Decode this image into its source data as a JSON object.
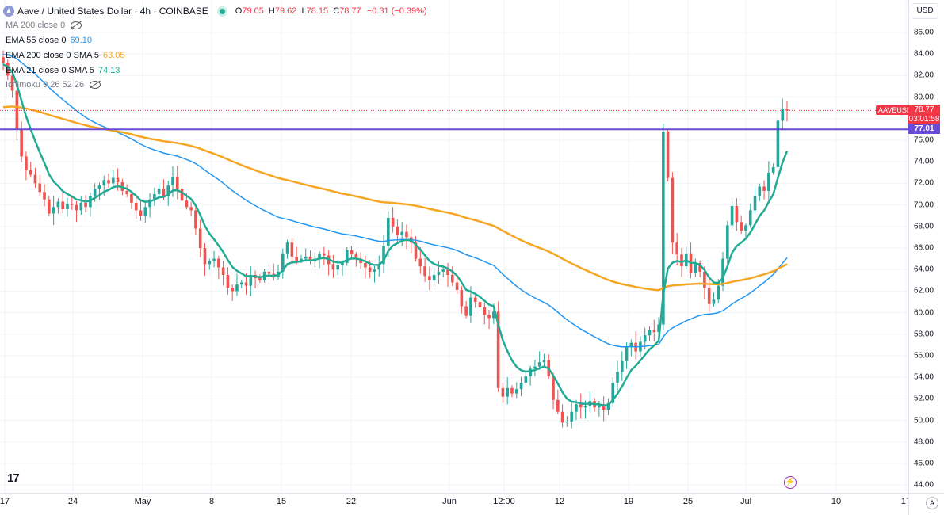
{
  "header": {
    "symbol_title": "Aave / United States Dollar · 4h · COINBASE",
    "open_label": "O",
    "open": "79.05",
    "high_label": "H",
    "high": "79.62",
    "low_label": "L",
    "low": "78.15",
    "close_label": "C",
    "close": "78.77",
    "change": "−0.31 (−0.39%)"
  },
  "indicators": [
    {
      "label": "MA 200 close 0",
      "value": "",
      "hidden": true,
      "color": "#2962ff"
    },
    {
      "label": "EMA 55 close 0",
      "value": "69.10",
      "hidden": false,
      "color": "#2196f3"
    },
    {
      "label": "EMA 200 close 0 SMA 5",
      "value": "63.05",
      "hidden": false,
      "color": "#f5a623"
    },
    {
      "label": "EMA 21 close 0 SMA 5",
      "value": "74.13",
      "hidden": false,
      "color": "#22ab94"
    },
    {
      "label": "Ichimoku 9 26 52 26",
      "value": "",
      "hidden": true,
      "color": "#888888"
    }
  ],
  "price_axis": {
    "currency": "USD",
    "ticks": [
      "86.00",
      "84.00",
      "82.00",
      "80.00",
      "78.00",
      "76.00",
      "74.00",
      "72.00",
      "70.00",
      "68.00",
      "66.00",
      "64.00",
      "62.00",
      "60.00",
      "58.00",
      "56.00",
      "54.00",
      "52.00",
      "50.00",
      "48.00",
      "46.00",
      "44.00"
    ],
    "last_price_label": "78.77",
    "countdown": "03:01:58",
    "symbol_badge": "AAVEUSD",
    "horizontal_line_label": "77.01"
  },
  "time_axis": {
    "ticks": [
      "17",
      "24",
      "May",
      "8",
      "15",
      "22",
      "Jun",
      "12:00",
      "12",
      "19",
      "25",
      "Jul",
      "10",
      "17"
    ],
    "auto_scale_label": "A"
  },
  "colors": {
    "up": "#26a69a",
    "down": "#ef5350",
    "ema21": "#22ab94",
    "ema55": "#2196f3",
    "ema200": "#f5a623",
    "hline": "#6a4bd8",
    "last_price": "#f23645"
  },
  "branding": {
    "logo": "17"
  },
  "chart_data": {
    "type": "candlestick",
    "timeframe": "4h",
    "ylim": [
      44,
      87
    ],
    "horizontal_line": 77.01,
    "last_price": 78.77,
    "closes": [
      83.2,
      82.0,
      80.6,
      77.0,
      74.5,
      73.2,
      72.8,
      72.0,
      71.2,
      70.5,
      69.2,
      69.8,
      70.3,
      69.6,
      70.1,
      70.0,
      69.5,
      70.2,
      69.8,
      70.8,
      71.5,
      71.8,
      72.3,
      72.0,
      72.5,
      72.1,
      71.3,
      71.0,
      70.2,
      69.5,
      69.0,
      69.8,
      70.5,
      71.0,
      71.5,
      70.8,
      71.8,
      72.6,
      71.5,
      70.4,
      69.8,
      69.5,
      67.8,
      66.0,
      64.5,
      64.8,
      65.0,
      64.2,
      63.5,
      62.3,
      62.0,
      62.6,
      62.8,
      62.5,
      63.5,
      63.2,
      63.0,
      63.8,
      63.6,
      63.3,
      63.8,
      65.5,
      66.5,
      65.2,
      64.8,
      65.0,
      65.2,
      64.8,
      65.0,
      65.5,
      65.3,
      64.5,
      64.0,
      64.4,
      64.6,
      65.8,
      65.4,
      65.0,
      64.6,
      64.2,
      63.8,
      64.0,
      64.5,
      66.2,
      68.8,
      68.0,
      67.2,
      67.5,
      67.0,
      66.5,
      65.0,
      64.3,
      63.4,
      63.0,
      63.5,
      63.8,
      64.0,
      63.5,
      62.8,
      62.1,
      60.6,
      59.7,
      61.4,
      61.0,
      60.5,
      59.8,
      59.5,
      60.1,
      53.0,
      52.2,
      53.0,
      52.5,
      52.9,
      53.5,
      54.1,
      54.8,
      55.0,
      55.4,
      55.6,
      54.1,
      51.9,
      50.8,
      49.8,
      49.9,
      50.8,
      51.5,
      51.2,
      51.3,
      51.8,
      51.2,
      51.5,
      51.0,
      51.6,
      53.5,
      54.5,
      55.5,
      56.8,
      57.2,
      56.4,
      57.3,
      57.9,
      58.4,
      58.2,
      58.9,
      76.8,
      72.5,
      66.5,
      65.4,
      64.3,
      65.5,
      63.7,
      64.6,
      63.8,
      62.3,
      60.8,
      61.2,
      62.5,
      65.0,
      68.1,
      69.9,
      68.4,
      67.6,
      68.1,
      69.5,
      70.8,
      71.7,
      71.3,
      73.0,
      73.5,
      77.8,
      78.9,
      78.77
    ]
  }
}
